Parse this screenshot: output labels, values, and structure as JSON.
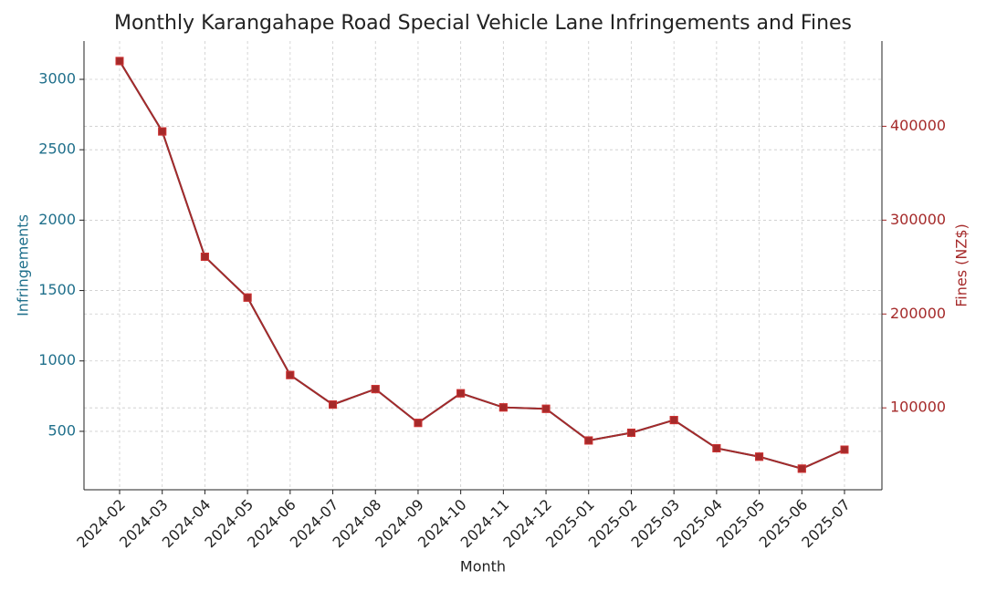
{
  "chart_data": {
    "type": "line",
    "title": "Monthly Karangahape Road Special Vehicle Lane Infringements and Fines",
    "x_label": "Month",
    "y_label": "Infringements",
    "y2_label": "Fines (NZ$)",
    "categories": [
      "2024-02",
      "2024-03",
      "2024-04",
      "2024-05",
      "2024-06",
      "2024-07",
      "2024-08",
      "2024-09",
      "2024-10",
      "2024-11",
      "2024-12",
      "2025-01",
      "2025-02",
      "2025-03",
      "2025-04",
      "2025-05",
      "2025-06",
      "2025-07"
    ],
    "series": [
      {
        "name": "Infringements",
        "color": "#1f6f8b",
        "values": [
          3130,
          2630,
          1740,
          1450,
          900,
          690,
          800,
          560,
          770,
          670,
          660,
          435,
          490,
          580,
          380,
          320,
          235,
          370
        ]
      },
      {
        "name": "Fines (NZ$)",
        "color": "#a52a2a",
        "axis": "y2",
        "values": [
          469500,
          394500,
          261000,
          217500,
          135000,
          103500,
          120000,
          84000,
          115500,
          100500,
          99000,
          65250,
          73500,
          87000,
          57000,
          48000,
          35250,
          55500
        ]
      }
    ],
    "ylim": [
      85,
      3272
    ],
    "yticks": [
      500,
      1000,
      1500,
      2000,
      2500,
      3000
    ],
    "y2lim": [
      12750,
      490800
    ],
    "y2ticks": [
      100000,
      200000,
      300000,
      400000
    ],
    "grid": true
  }
}
